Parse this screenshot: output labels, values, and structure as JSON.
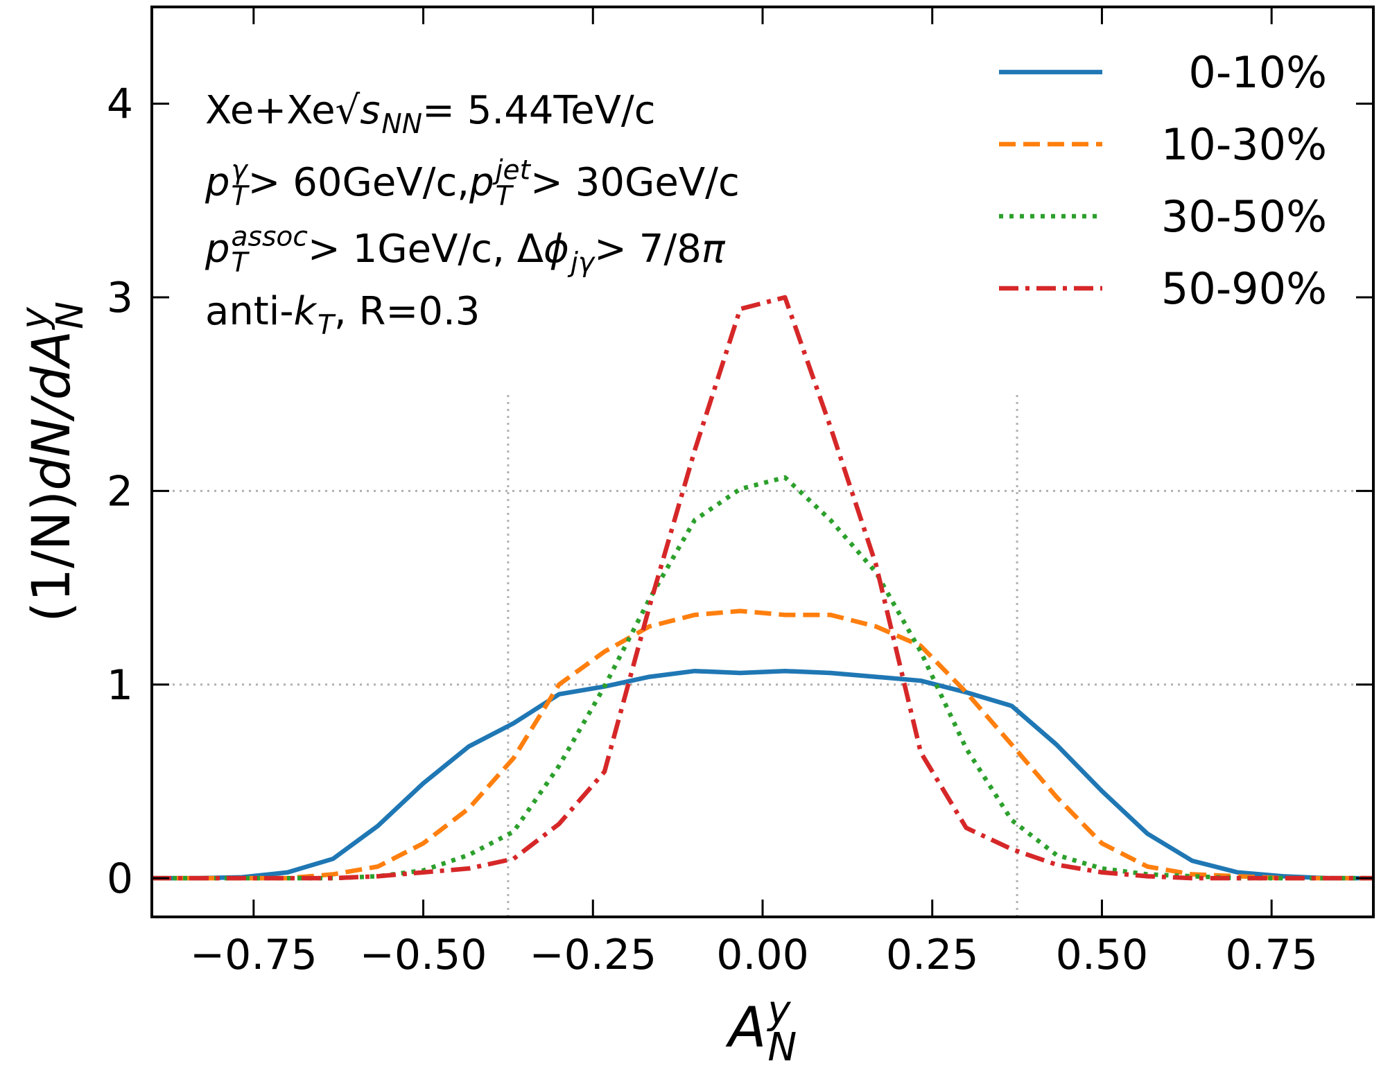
{
  "chart_data": {
    "type": "line",
    "x": [
      -0.9,
      -0.833,
      -0.767,
      -0.7,
      -0.633,
      -0.567,
      -0.5,
      -0.433,
      -0.367,
      -0.3,
      -0.233,
      -0.167,
      -0.1,
      -0.033,
      0.033,
      0.1,
      0.167,
      0.233,
      0.3,
      0.367,
      0.433,
      0.5,
      0.567,
      0.633,
      0.7,
      0.767,
      0.833,
      0.9
    ],
    "series": [
      {
        "name": "0-10%",
        "color": "#1f77b4",
        "style": "solid",
        "values": [
          0,
          0,
          0.005,
          0.03,
          0.1,
          0.27,
          0.49,
          0.68,
          0.8,
          0.95,
          0.99,
          1.04,
          1.07,
          1.06,
          1.07,
          1.06,
          1.04,
          1.02,
          0.96,
          0.89,
          0.69,
          0.45,
          0.23,
          0.09,
          0.03,
          0.01,
          0,
          0
        ]
      },
      {
        "name": "10-30%",
        "color": "#ff7f0e",
        "style": "dashed",
        "values": [
          0,
          0,
          0,
          0,
          0.02,
          0.06,
          0.18,
          0.36,
          0.62,
          1.0,
          1.17,
          1.3,
          1.36,
          1.38,
          1.36,
          1.36,
          1.3,
          1.2,
          0.96,
          0.69,
          0.42,
          0.18,
          0.06,
          0.02,
          0.01,
          0,
          0,
          0
        ]
      },
      {
        "name": "30-50%",
        "color": "#2ca02c",
        "style": "dotted",
        "values": [
          0,
          0,
          0,
          0,
          0,
          0.01,
          0.04,
          0.12,
          0.24,
          0.58,
          0.99,
          1.44,
          1.85,
          2.01,
          2.07,
          1.85,
          1.58,
          1.17,
          0.67,
          0.3,
          0.12,
          0.05,
          0.02,
          0.01,
          0,
          0,
          0,
          0
        ]
      },
      {
        "name": "50-90%",
        "color": "#d62728",
        "style": "dashdot",
        "values": [
          0,
          0,
          0,
          0,
          0,
          0.01,
          0.03,
          0.05,
          0.1,
          0.28,
          0.55,
          1.4,
          2.21,
          2.94,
          3.0,
          2.33,
          1.62,
          0.65,
          0.26,
          0.15,
          0.07,
          0.03,
          0.01,
          0,
          0,
          0,
          0,
          0
        ]
      }
    ],
    "xlim": [
      -0.9,
      0.9
    ],
    "ylim": [
      -0.2,
      4.5
    ],
    "xticks": [
      {
        "value": -0.75,
        "label": "−0.75"
      },
      {
        "value": -0.5,
        "label": "−0.50"
      },
      {
        "value": -0.25,
        "label": "−0.25"
      },
      {
        "value": 0,
        "label": "0.00"
      },
      {
        "value": 0.25,
        "label": "0.25"
      },
      {
        "value": 0.5,
        "label": "0.50"
      },
      {
        "value": 0.75,
        "label": "0.75"
      }
    ],
    "yticks": [
      0,
      1,
      2,
      3,
      4
    ],
    "hlines": [
      1,
      2
    ],
    "vlines": {
      "x": [
        -0.375,
        0.375
      ],
      "ymax": 2.5
    },
    "legend": "upper right",
    "xlabel": [
      {
        "text": "A",
        "italic": true,
        "sup": "y",
        "sub": "N"
      }
    ],
    "ylabel": [
      {
        "text": "(1/N) "
      },
      {
        "text": "dN/dA",
        "italic": true,
        "sup": "y",
        "sub": "N"
      }
    ],
    "annotation": [
      [
        {
          "text": "Xe+Xe "
        },
        {
          "text": "√"
        },
        {
          "text": "s",
          "italic": true,
          "sub": "NN"
        },
        {
          "text": " = 5.44TeV/c"
        }
      ],
      [
        {
          "text": "p",
          "italic": true,
          "sup": "γ",
          "sub": "T"
        },
        {
          "text": " > 60GeV/c, "
        },
        {
          "text": "p",
          "italic": true,
          "sup": "jet",
          "sub": "T"
        },
        {
          "text": " > 30GeV/c"
        }
      ],
      [
        {
          "text": "p",
          "italic": true,
          "sup": "assoc",
          "sub": "T"
        },
        {
          "text": " > 1GeV/c, Δ"
        },
        {
          "text": "ϕ",
          "italic": true,
          "sub": "jγ"
        },
        {
          "text": " >  7/8"
        },
        {
          "text": "π",
          "italic": true
        }
      ],
      [
        {
          "text": "anti-"
        },
        {
          "text": "k",
          "italic": true,
          "sub": "T"
        },
        {
          "text": ", R=0.3"
        }
      ]
    ]
  }
}
